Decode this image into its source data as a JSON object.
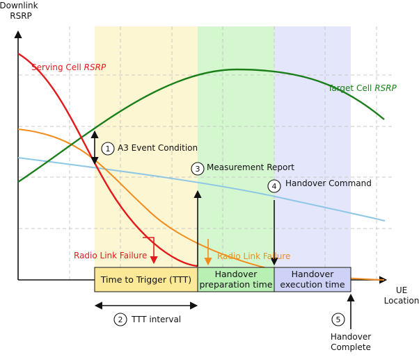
{
  "axes": {
    "y_label_line1": "Downlink",
    "y_label_line2": "RSRP",
    "x_label_line1": "UE",
    "x_label_line2": "Location"
  },
  "curves": {
    "serving_prefix": "Serving Cell ",
    "serving_italic": "RSRP",
    "target_prefix": "Target Cell ",
    "target_italic": "RSRP"
  },
  "events": [
    {
      "number": "1",
      "label": "A3 Event Condition"
    },
    {
      "number": "2",
      "label": "TTT interval"
    },
    {
      "number": "3",
      "label": "Measurement Report"
    },
    {
      "number": "4",
      "label": "Handover Command"
    },
    {
      "number": "5",
      "label_line1": "Handover",
      "label_line2": "Complete"
    }
  ],
  "rlf": {
    "red_label": "Radio Link Failure",
    "orange_label": "Radio Link Failure"
  },
  "phases": {
    "ttt": "Time to Trigger (TTT)",
    "prep_line1": "Handover",
    "prep_line2": "preparation time",
    "exec_line1": "Handover",
    "exec_line2": "execution time"
  },
  "colors": {
    "serving": "#e31a1c",
    "target": "#1a7f1a",
    "orange": "#f28c1e",
    "lightblue": "#8ec7e6",
    "ttt_fill": "#fdf6d2",
    "prep_fill": "#d4f7d0",
    "exec_fill": "#e4e6fb"
  }
}
